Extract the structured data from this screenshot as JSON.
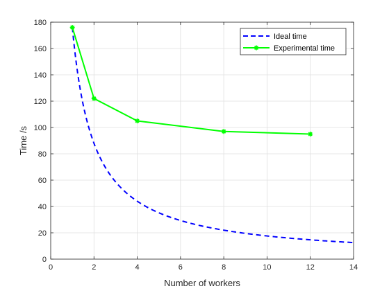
{
  "chart_data": {
    "type": "line",
    "title": "",
    "xlabel": "Number of workers",
    "ylabel": "Time /s",
    "xlim": [
      0,
      14
    ],
    "ylim": [
      0,
      180
    ],
    "xticks": [
      0,
      2,
      4,
      6,
      8,
      10,
      12,
      14
    ],
    "yticks": [
      0,
      20,
      40,
      60,
      80,
      100,
      120,
      140,
      160,
      180
    ],
    "xtick_labels": [
      "0",
      "2",
      "4",
      "6",
      "8",
      "10",
      "12",
      "14"
    ],
    "ytick_labels": [
      "0",
      "20",
      "40",
      "60",
      "80",
      "100",
      "120",
      "140",
      "160",
      "180"
    ],
    "grid": true,
    "legend_position": "top-right",
    "series": [
      {
        "name": "Ideal time",
        "color": "#0000ff",
        "style": "dashed",
        "formula": "176/x",
        "x_range": [
          1,
          14
        ]
      },
      {
        "name": "Experimental time",
        "color": "#00ff00",
        "style": "solid",
        "marker": "star",
        "x": [
          1,
          2,
          4,
          8,
          12
        ],
        "y": [
          176,
          122,
          105,
          97,
          95
        ]
      }
    ]
  }
}
